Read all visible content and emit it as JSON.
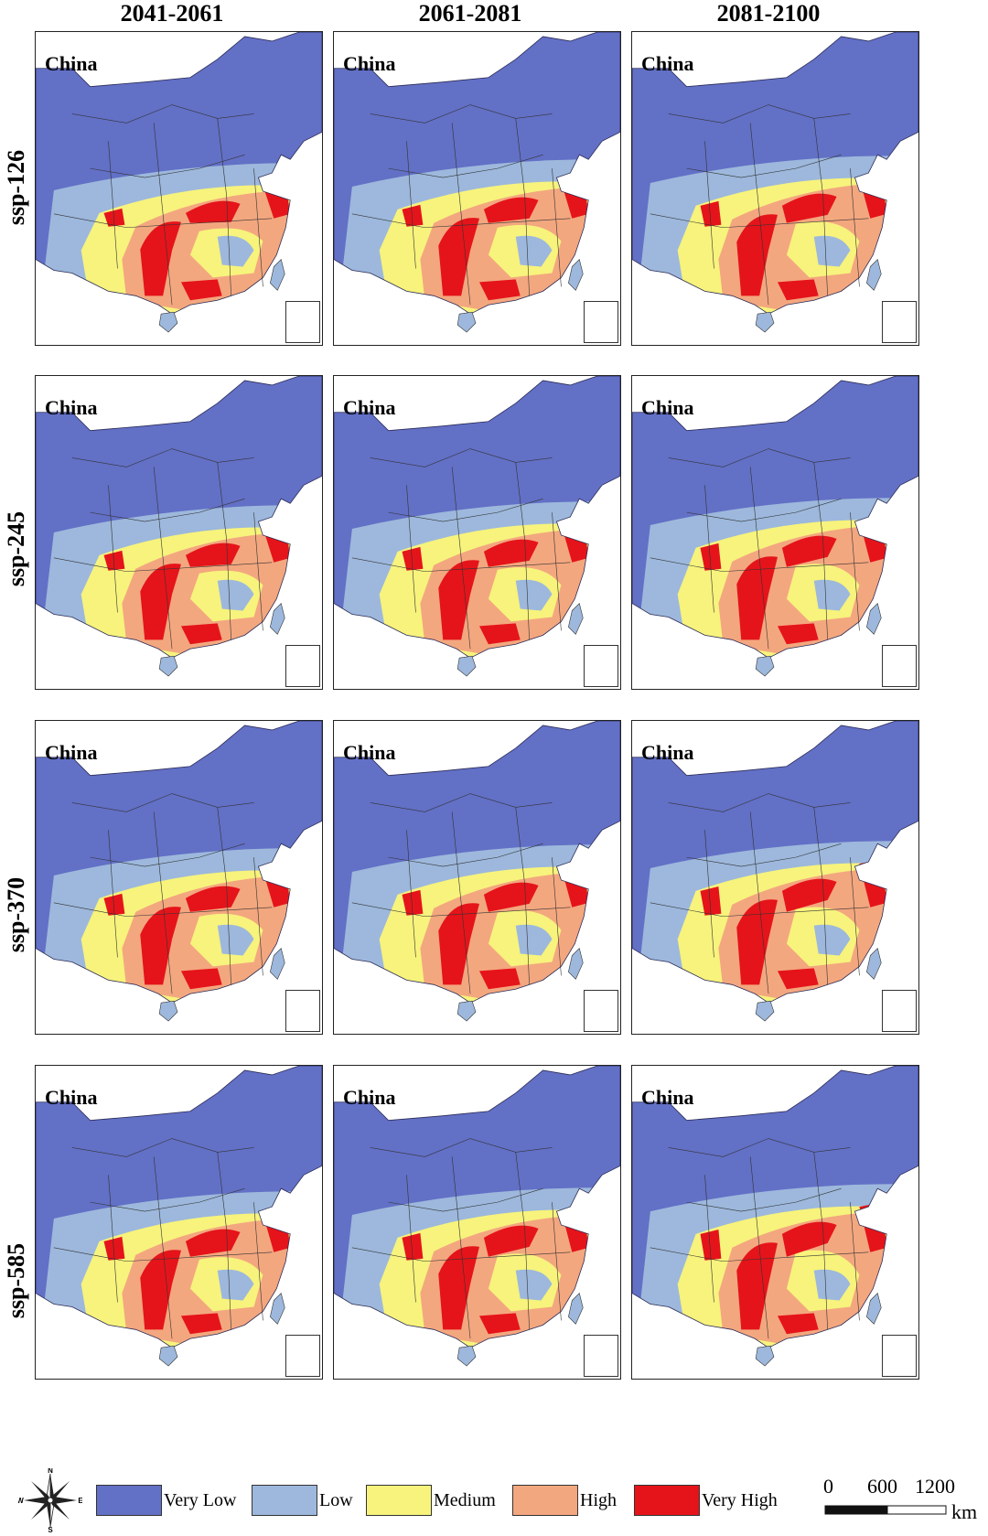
{
  "columns": [
    "2041-2061",
    "2061-2081",
    "2081-2100"
  ],
  "rows": [
    "ssp-126",
    "ssp-245",
    "ssp-370",
    "ssp-585"
  ],
  "panel_label": "China",
  "legend": {
    "items": [
      {
        "label": "Very Low",
        "color": "#6270c6"
      },
      {
        "label": "Low",
        "color": "#9db8dc"
      },
      {
        "label": "Medium",
        "color": "#f7f37c"
      },
      {
        "label": "High",
        "color": "#f3a77f"
      },
      {
        "label": "Very High",
        "color": "#e5141a"
      }
    ]
  },
  "compass": {
    "n": "N",
    "s": "S",
    "e": "E",
    "w": "W"
  },
  "scale_bar": {
    "ticks": [
      "0",
      "600",
      "1200"
    ],
    "unit": "km"
  }
}
